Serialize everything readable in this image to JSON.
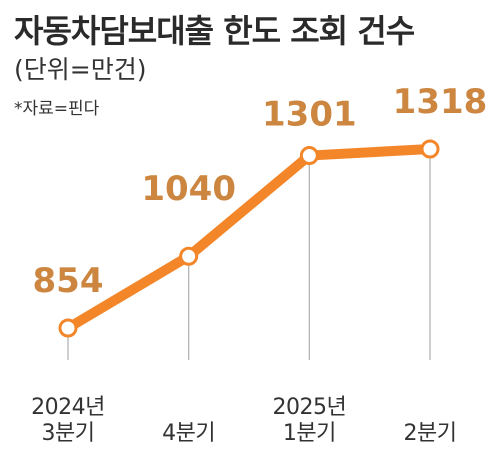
{
  "header": {
    "title": "자동차담보대출 한도 조회 건수",
    "subtitle": "(단위=만건)",
    "source": "*자료=핀다"
  },
  "colors": {
    "line": "#f4862a",
    "label": "#cc8640",
    "guide": "#b5b5b5",
    "marker_fill": "#ffffff"
  },
  "chart_data": {
    "type": "line",
    "categories": [
      [
        "2024년",
        "3분기"
      ],
      [
        "4분기"
      ],
      [
        "2025년",
        "1분기"
      ],
      [
        "2분기"
      ]
    ],
    "values": [
      854,
      1040,
      1301,
      1318
    ],
    "data_labels": [
      "854",
      "1040",
      "1301",
      "1318"
    ],
    "title": "자동차담보대출 한도 조회 건수",
    "unit": "(단위=만건)",
    "xlabel": "",
    "ylabel": "",
    "grid": false,
    "legend": "none"
  }
}
